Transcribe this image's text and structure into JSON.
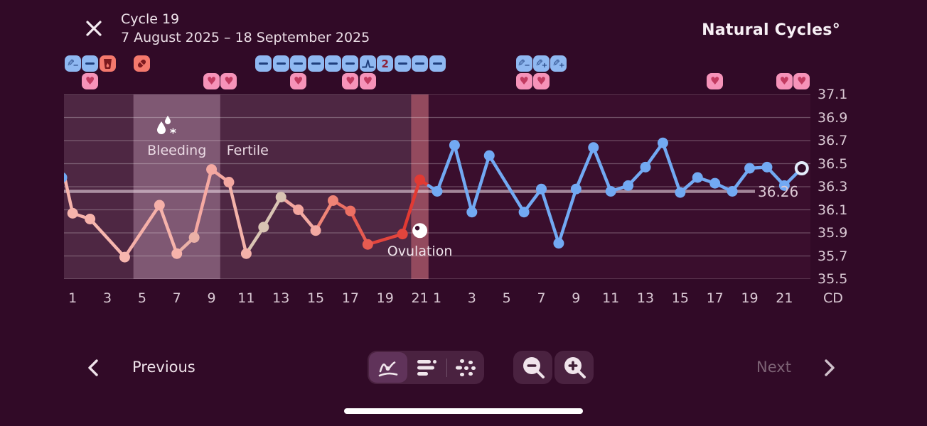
{
  "header": {
    "title": "Cycle 19",
    "date_range": "7 August 2025 – 18 September 2025",
    "logo": "Natural Cycles°"
  },
  "colors": {
    "page_bg": "#310a27",
    "cycle1_region": "#4e2743",
    "bleeding_region": "#7f5873",
    "ovulation_band": "#934a5e",
    "cycle2_region": "#3a0e2d",
    "gridline": "rgba(255,255,255,0.26)",
    "coverline": "rgba(228,209,220,0.62)",
    "cycle2_line": "#72a9f3",
    "badge_blue": "#8fb8f1",
    "badge_red": "#f4796d",
    "badge_pink": "#f693b9"
  },
  "annotations": {
    "badges": [
      {
        "slot": 0,
        "kind": "pen-minus"
      },
      {
        "slot": 1,
        "kind": "minus"
      },
      {
        "slot": 2,
        "kind": "cup"
      },
      {
        "slot": 4,
        "kind": "pill"
      },
      {
        "slot": 11,
        "kind": "minus"
      },
      {
        "slot": 12,
        "kind": "minus"
      },
      {
        "slot": 13,
        "kind": "minus"
      },
      {
        "slot": 14,
        "kind": "minus"
      },
      {
        "slot": 15,
        "kind": "minus"
      },
      {
        "slot": 16,
        "kind": "minus"
      },
      {
        "slot": 17,
        "kind": "lh-surge"
      },
      {
        "slot": 18,
        "kind": "value",
        "label": "2"
      },
      {
        "slot": 19,
        "kind": "minus"
      },
      {
        "slot": 20,
        "kind": "minus"
      },
      {
        "slot": 21,
        "kind": "minus"
      },
      {
        "slot": 26,
        "kind": "pen-minus"
      },
      {
        "slot": 27,
        "kind": "pen-plus"
      },
      {
        "slot": 28,
        "kind": "pen-plus"
      }
    ],
    "hearts_slots": [
      1,
      8,
      9,
      13,
      16,
      17,
      26,
      27,
      37,
      41,
      42
    ]
  },
  "chart": {
    "y_ticks": [
      "37.1",
      "36.9",
      "36.7",
      "36.5",
      "36.3",
      "36.1",
      "35.9",
      "35.7",
      "35.5"
    ],
    "x_ticks_cycle1": [
      "1",
      "3",
      "5",
      "7",
      "9",
      "11",
      "13",
      "15",
      "17",
      "19",
      "21"
    ],
    "x_ticks_cycle2": [
      "1",
      "3",
      "5",
      "7",
      "9",
      "11",
      "13",
      "15",
      "17",
      "19",
      "21"
    ],
    "x_unit": "CD",
    "bleeding_label": "Bleeding",
    "fertile_label": "Fertile",
    "ovulation_label": "Ovulation",
    "coverline_label": "36.26"
  },
  "chart_data": {
    "type": "line",
    "title": "Cycle 19 temperature curve",
    "ylim": [
      35.5,
      37.1
    ],
    "y_tick_values": [
      37.1,
      36.9,
      36.7,
      36.5,
      36.3,
      36.1,
      35.9,
      35.7,
      35.5
    ],
    "x_unit": "cycle day",
    "cycle1_days": 21,
    "cycle2_days": 22,
    "coverline_value": 36.26,
    "regions": {
      "bleeding_cycle_days": [
        5,
        9
      ],
      "fertile_cycle_days": [
        10,
        20
      ],
      "ovulation_cycle_day": 21
    },
    "prev_cycle_edge_point": {
      "temp": 36.38
    },
    "series": [
      {
        "name": "cycle-19-temperatures",
        "points": [
          {
            "cd": 1,
            "temp": 36.07,
            "color": "#f6b3ac"
          },
          {
            "cd": 2,
            "temp": 36.02,
            "color": "#f6b2ab"
          },
          {
            "cd": 4,
            "temp": 35.69,
            "color": "#f7b6ae"
          },
          {
            "cd": 6,
            "temp": 36.14,
            "color": "#f5b0a9"
          },
          {
            "cd": 7,
            "temp": 35.72,
            "color": "#f6b3ab"
          },
          {
            "cd": 8,
            "temp": 35.86,
            "color": "#eab1a7"
          },
          {
            "cd": 9,
            "temp": 36.45,
            "color": "#f5a9a2"
          },
          {
            "cd": 10,
            "temp": 36.34,
            "color": "#f4a7a0"
          },
          {
            "cd": 11,
            "temp": 35.72,
            "color": "#f4b2aa"
          },
          {
            "cd": 12,
            "temp": 35.95,
            "color": "#d9c4b3"
          },
          {
            "cd": 13,
            "temp": 36.21,
            "color": "#d9c4b3"
          },
          {
            "cd": 14,
            "temp": 36.1,
            "color": "#f2a59e"
          },
          {
            "cd": 15,
            "temp": 35.92,
            "color": "#f3a9a2"
          },
          {
            "cd": 16,
            "temp": 36.18,
            "color": "#ef8477"
          },
          {
            "cd": 17,
            "temp": 36.09,
            "color": "#ec7064"
          },
          {
            "cd": 18,
            "temp": 35.8,
            "color": "#e75b51"
          },
          {
            "cd": 20,
            "temp": 35.89,
            "color": "#e2453d"
          },
          {
            "cd": 21,
            "temp": 36.36,
            "color": "#e23a33"
          }
        ]
      },
      {
        "name": "next-cycle-temperatures",
        "color": "#72a9f3",
        "points": [
          {
            "cd": 1,
            "temp": 36.26
          },
          {
            "cd": 2,
            "temp": 36.66
          },
          {
            "cd": 3,
            "temp": 36.08
          },
          {
            "cd": 4,
            "temp": 36.57
          },
          {
            "cd": 6,
            "temp": 36.08
          },
          {
            "cd": 7,
            "temp": 36.28
          },
          {
            "cd": 8,
            "temp": 35.81
          },
          {
            "cd": 9,
            "temp": 36.28
          },
          {
            "cd": 10,
            "temp": 36.64
          },
          {
            "cd": 11,
            "temp": 36.26
          },
          {
            "cd": 12,
            "temp": 36.31
          },
          {
            "cd": 13,
            "temp": 36.47
          },
          {
            "cd": 14,
            "temp": 36.68
          },
          {
            "cd": 15,
            "temp": 36.25
          },
          {
            "cd": 16,
            "temp": 36.38
          },
          {
            "cd": 17,
            "temp": 36.33
          },
          {
            "cd": 18,
            "temp": 36.26
          },
          {
            "cd": 19,
            "temp": 36.46
          },
          {
            "cd": 20,
            "temp": 36.47
          },
          {
            "cd": 21,
            "temp": 36.31
          },
          {
            "cd": 22,
            "temp": 36.46,
            "open": true
          }
        ]
      }
    ]
  },
  "footer": {
    "previous_label": "Previous",
    "next_label": "Next"
  }
}
